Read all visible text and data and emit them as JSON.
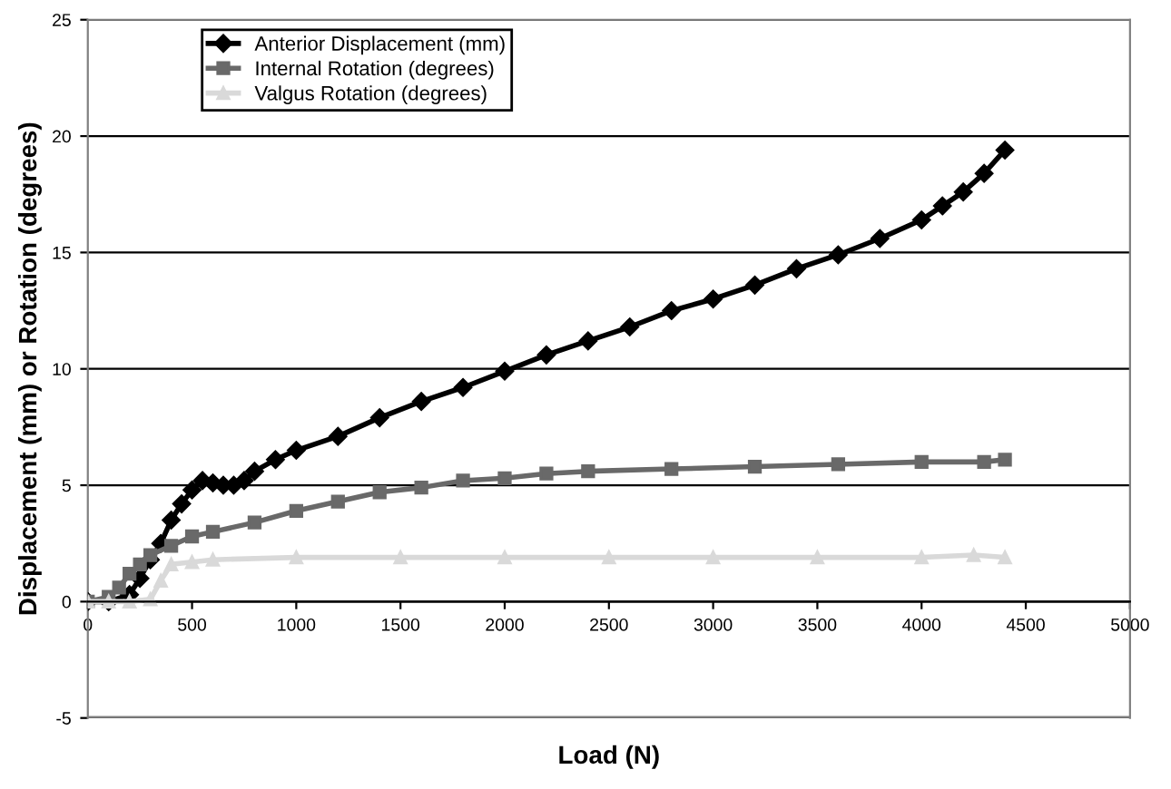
{
  "chart_data": {
    "type": "line",
    "xlabel": "Load (N)",
    "ylabel": "Displacement (mm) or Rotation (degrees)",
    "xlim": [
      0,
      5000
    ],
    "xticks": [
      0,
      500,
      1000,
      1500,
      2000,
      2500,
      3000,
      3500,
      4000,
      4500,
      5000
    ],
    "ylim": [
      -5,
      25
    ],
    "yticks": [
      -5,
      0,
      5,
      10,
      15,
      20,
      25
    ],
    "grid": "y",
    "legend": "top left",
    "line_style": "solid",
    "series": [
      {
        "name": "Anterior Displacement (mm)",
        "color": "#000000",
        "marker": "diamond",
        "x": [
          0,
          100,
          200,
          250,
          300,
          350,
          400,
          450,
          500,
          550,
          600,
          650,
          700,
          750,
          800,
          900,
          1000,
          1200,
          1400,
          1600,
          1800,
          2000,
          2200,
          2400,
          2600,
          2800,
          3000,
          3200,
          3400,
          3600,
          3800,
          4000,
          4100,
          4200,
          4300,
          4400
        ],
        "values": [
          0,
          0,
          0.3,
          1,
          1.8,
          2.5,
          3.5,
          4.2,
          4.8,
          5.2,
          5.1,
          5.0,
          5.0,
          5.2,
          5.6,
          6.1,
          6.5,
          7.1,
          7.9,
          8.6,
          9.2,
          9.9,
          10.6,
          11.2,
          11.8,
          12.5,
          13.0,
          13.6,
          14.3,
          14.9,
          15.6,
          16.4,
          17.0,
          17.6,
          18.4,
          19.4
        ]
      },
      {
        "name": "Internal Rotation (degrees)",
        "color": "#696969",
        "marker": "square",
        "x": [
          0,
          100,
          150,
          200,
          250,
          300,
          400,
          500,
          600,
          800,
          1000,
          1200,
          1400,
          1600,
          1800,
          2000,
          2200,
          2400,
          2800,
          3200,
          3600,
          4000,
          4300,
          4400
        ],
        "values": [
          0,
          0.2,
          0.6,
          1.2,
          1.6,
          2.0,
          2.4,
          2.8,
          3.0,
          3.4,
          3.9,
          4.3,
          4.7,
          4.9,
          5.2,
          5.3,
          5.5,
          5.6,
          5.7,
          5.8,
          5.9,
          6.0,
          6.0,
          6.1
        ]
      },
      {
        "name": "Valgus Rotation (degrees)",
        "color": "#d9d9d9",
        "marker": "triangle",
        "x": [
          0,
          100,
          200,
          300,
          350,
          400,
          500,
          600,
          1000,
          1500,
          2000,
          2500,
          3000,
          3500,
          4000,
          4250,
          4400
        ],
        "values": [
          0,
          0,
          0,
          0.1,
          0.9,
          1.6,
          1.7,
          1.8,
          1.9,
          1.9,
          1.9,
          1.9,
          1.9,
          1.9,
          1.9,
          2.0,
          1.9
        ]
      }
    ]
  }
}
